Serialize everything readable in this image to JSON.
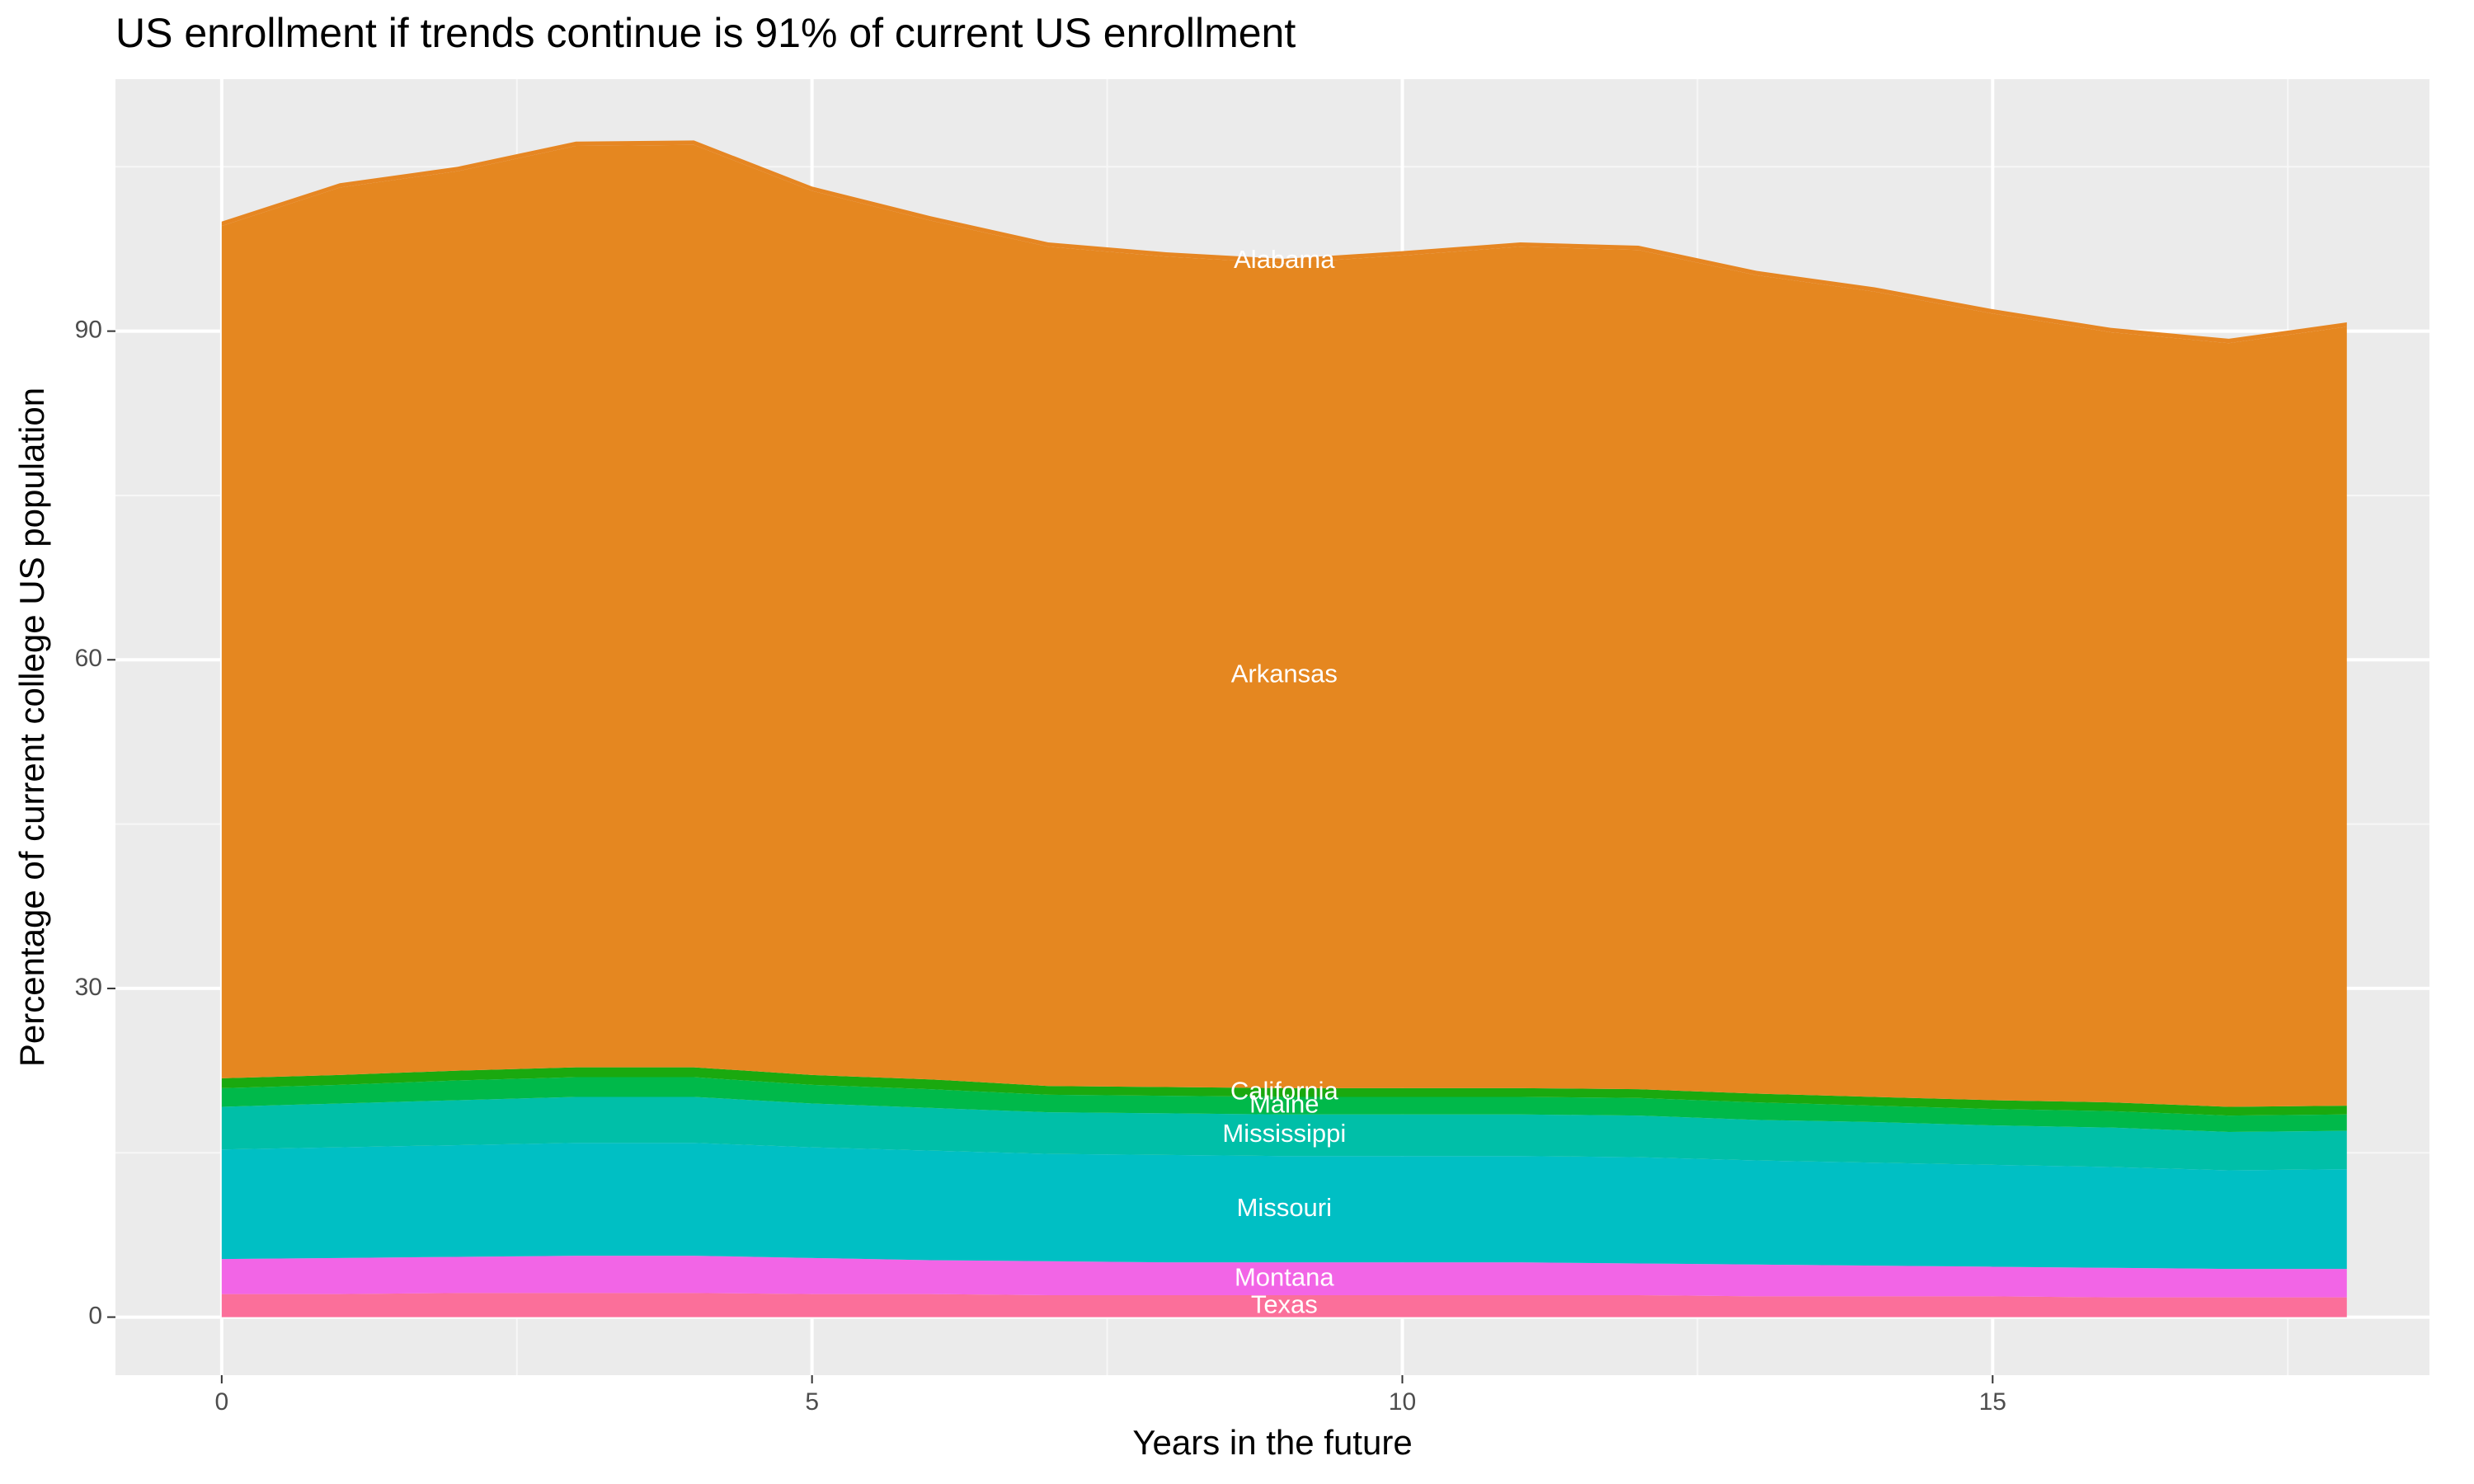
{
  "chart_data": {
    "type": "stacked_area",
    "title": "US enrollment if trends continue is 91% of current US enrollment",
    "x_label": "Years in the future",
    "y_label": "Percentage of current college US population",
    "x": [
      0,
      1,
      2,
      3,
      4,
      5,
      6,
      7,
      8,
      9,
      10,
      11,
      12,
      13,
      14,
      15,
      16,
      17,
      18
    ],
    "xlim": [
      -0.9,
      18.7
    ],
    "xticks": [
      0,
      5,
      10,
      15
    ],
    "ylim": [
      -5.3,
      113
    ],
    "yticks": [
      0,
      30,
      60,
      90
    ],
    "grid": true,
    "series": [
      {
        "name": "Texas",
        "color": "#fb6f9a",
        "values": [
          2.1,
          2.1,
          2.2,
          2.2,
          2.2,
          2.1,
          2.1,
          2.0,
          2.0,
          2.0,
          2.0,
          2.0,
          2.0,
          1.9,
          1.9,
          1.9,
          1.8,
          1.8,
          1.8
        ]
      },
      {
        "name": "Montana",
        "color": "#f265e6",
        "values": [
          3.2,
          3.3,
          3.3,
          3.4,
          3.4,
          3.3,
          3.1,
          3.1,
          3.0,
          3.0,
          3.0,
          3.0,
          2.9,
          2.9,
          2.8,
          2.7,
          2.7,
          2.6,
          2.6
        ]
      },
      {
        "name": "Missouri",
        "color": "#00bfc4",
        "values": [
          10.0,
          10.1,
          10.2,
          10.3,
          10.3,
          10.1,
          10.0,
          9.8,
          9.8,
          9.7,
          9.7,
          9.7,
          9.7,
          9.5,
          9.4,
          9.3,
          9.2,
          9.0,
          9.1
        ]
      },
      {
        "name": "Mississippi",
        "color": "#00bfa8",
        "values": [
          3.9,
          4.0,
          4.1,
          4.2,
          4.2,
          4.0,
          3.9,
          3.8,
          3.8,
          3.8,
          3.8,
          3.8,
          3.8,
          3.7,
          3.7,
          3.6,
          3.6,
          3.5,
          3.5
        ]
      },
      {
        "name": "Maine",
        "color": "#00b94a",
        "values": [
          1.7,
          1.7,
          1.8,
          1.8,
          1.8,
          1.7,
          1.7,
          1.6,
          1.6,
          1.6,
          1.6,
          1.6,
          1.6,
          1.6,
          1.5,
          1.5,
          1.5,
          1.5,
          1.5
        ]
      },
      {
        "name": "California",
        "color": "#1aa90f",
        "values": [
          0.9,
          0.9,
          0.9,
          0.9,
          0.9,
          0.9,
          0.9,
          0.8,
          0.8,
          0.8,
          0.8,
          0.8,
          0.8,
          0.8,
          0.8,
          0.8,
          0.8,
          0.8,
          0.8
        ]
      },
      {
        "name": "Arkansas",
        "color": "#e58720",
        "values": [
          77.8,
          81.0,
          82.1,
          84.1,
          84.2,
          80.7,
          78.4,
          76.6,
          75.8,
          75.3,
          76.0,
          76.8,
          76.6,
          74.7,
          73.5,
          71.8,
          70.3,
          69.7,
          71.1
        ]
      },
      {
        "name": "Alabama",
        "color": "#e68622",
        "values": [
          0.4,
          0.4,
          0.4,
          0.4,
          0.4,
          0.4,
          0.4,
          0.4,
          0.4,
          0.4,
          0.4,
          0.4,
          0.4,
          0.4,
          0.4,
          0.4,
          0.4,
          0.4,
          0.4
        ]
      }
    ]
  }
}
